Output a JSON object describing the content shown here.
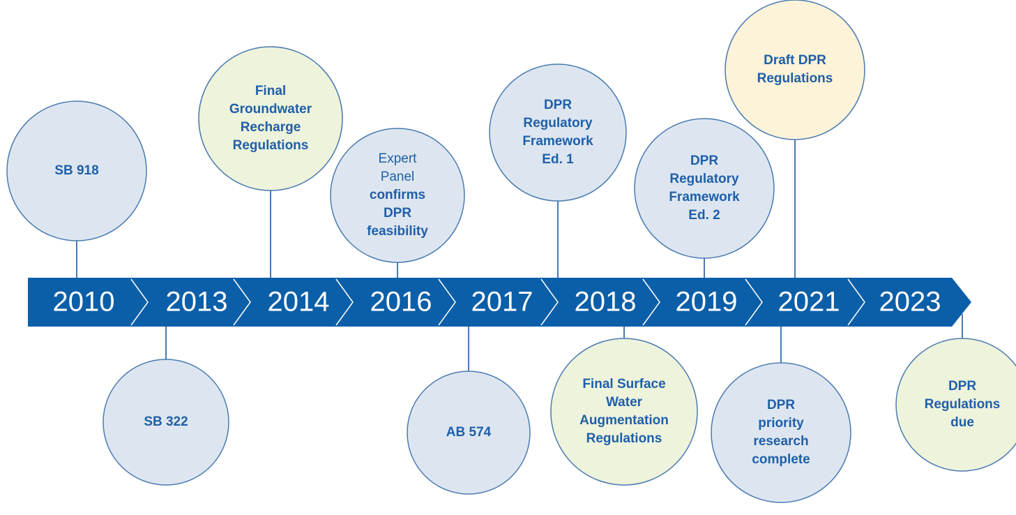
{
  "years": [
    "2010",
    "2013",
    "2014",
    "2016",
    "2017",
    "2018",
    "2019",
    "2021",
    "2023"
  ],
  "events": [
    {
      "lines": [
        "SB 918"
      ],
      "fill": "#dde6f0"
    },
    {
      "lines": [
        "SB 322"
      ],
      "fill": "#dde6f0"
    },
    {
      "lines": [
        "Final",
        "Groundwater",
        "Recharge",
        "Regulations"
      ],
      "fill": "#eef3dc"
    },
    {
      "lines": [
        "Expert",
        "Panel",
        "confirms",
        "DPR",
        "feasibility"
      ],
      "fill": "#dde6f0",
      "regular_lines": 2
    },
    {
      "lines": [
        "AB 574"
      ],
      "fill": "#dde6f0"
    },
    {
      "lines": [
        "DPR",
        "Regulatory",
        "Framework",
        "Ed. 1"
      ],
      "fill": "#dde6f0"
    },
    {
      "lines": [
        "Final Surface",
        "Water",
        "Augmentation",
        "Regulations"
      ],
      "fill": "#eef3dc"
    },
    {
      "lines": [
        "DPR",
        "Regulatory",
        "Framework",
        "Ed. 2"
      ],
      "fill": "#dde6f0"
    },
    {
      "lines": [
        "DPR",
        "priority",
        "research",
        "complete"
      ],
      "fill": "#dde6f0"
    },
    {
      "lines": [
        "Draft DPR",
        "Regulations"
      ],
      "fill": "#fcf3d8"
    },
    {
      "lines": [
        "DPR",
        "Regulations",
        "due"
      ],
      "fill": "#eef3dc"
    }
  ]
}
